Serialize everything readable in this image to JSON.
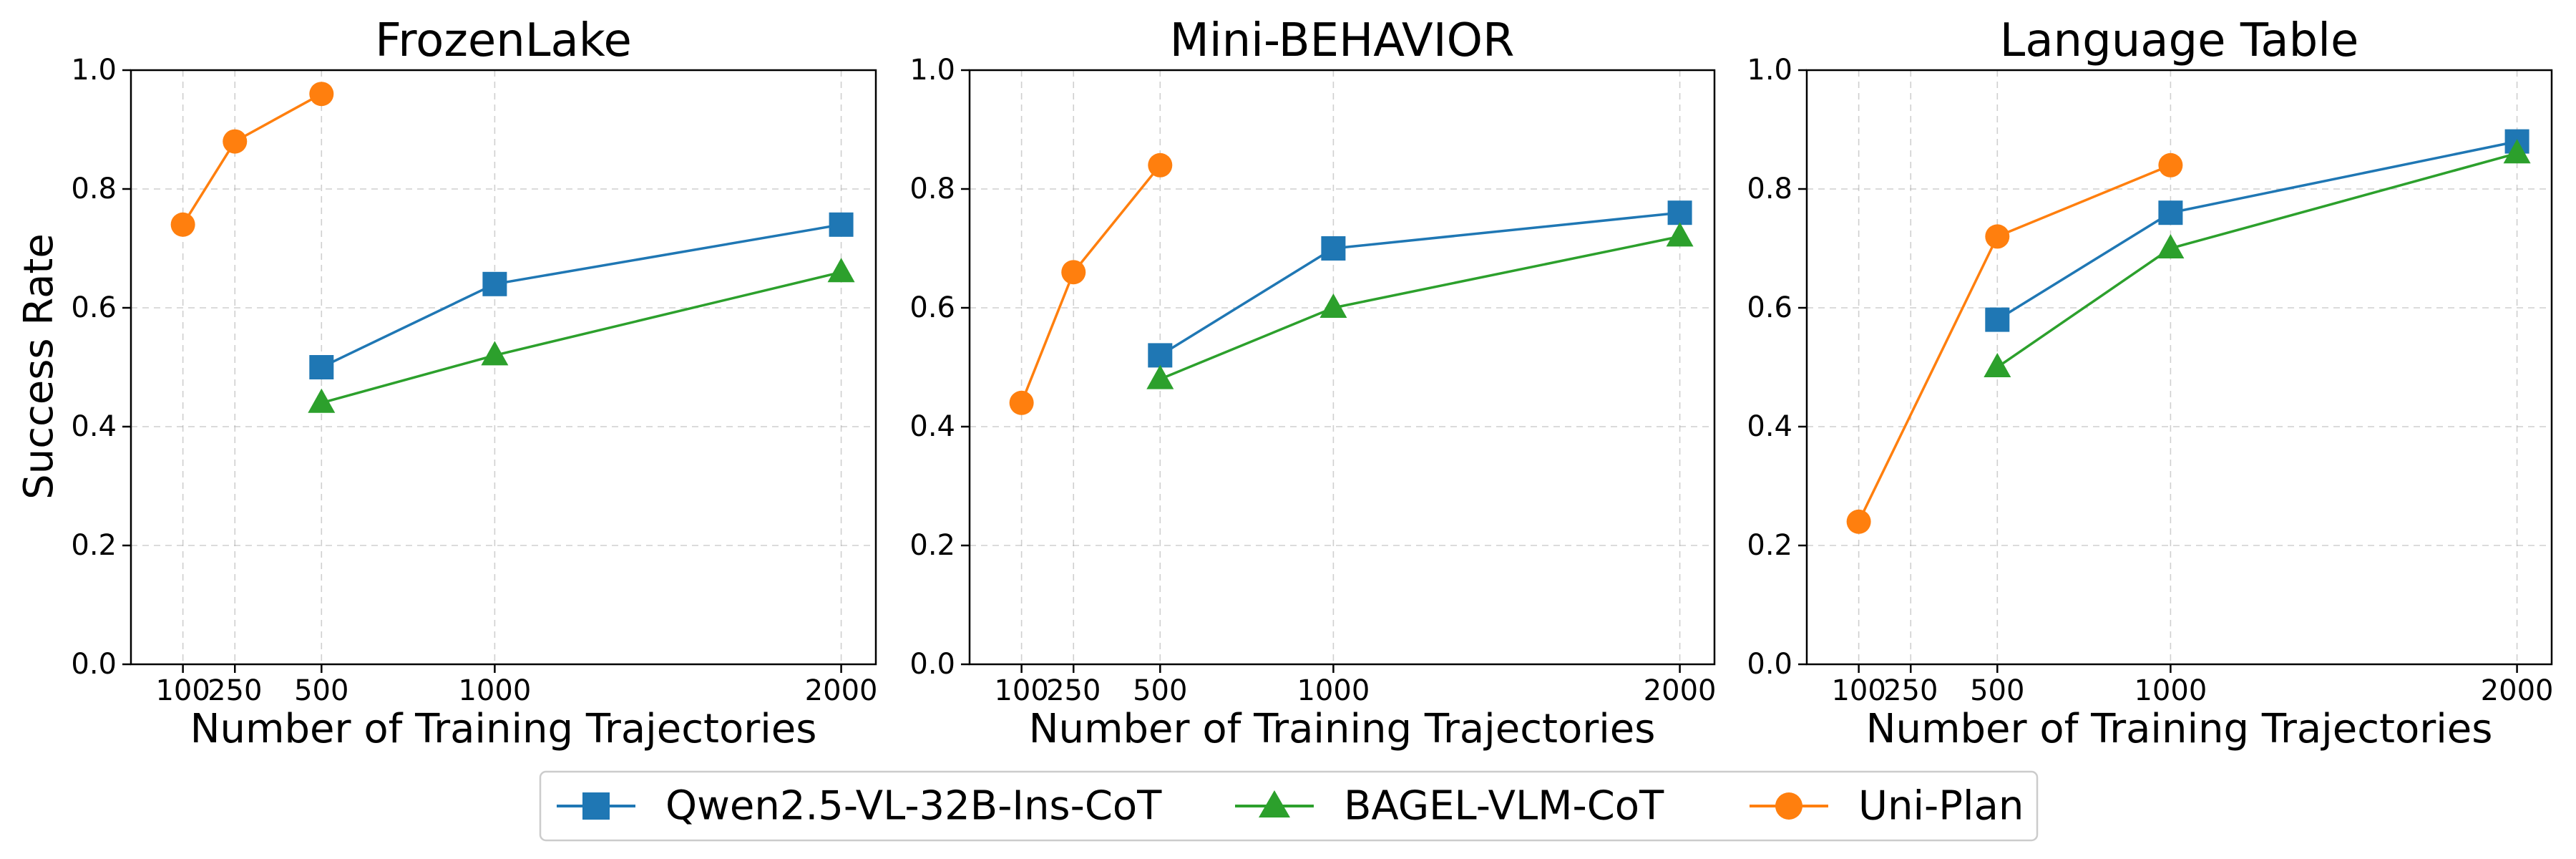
{
  "figure": {
    "y_axis_label": "Success Rate",
    "series_meta": [
      {
        "name": "Qwen2.5-VL-32B-Ins-CoT",
        "color": "#1f77b4",
        "marker": "square"
      },
      {
        "name": "BAGEL-VLM-CoT",
        "color": "#2ca02c",
        "marker": "triangle"
      },
      {
        "name": "Uni-Plan",
        "color": "#ff7f0e",
        "marker": "circle"
      }
    ]
  },
  "chart_data": [
    {
      "type": "line",
      "title": "FrozenLake",
      "xlabel": "Number of Training Trajectories",
      "ylabel": "Success Rate",
      "xlim": [
        -50,
        2100
      ],
      "ylim": [
        0.0,
        1.0
      ],
      "xticks": [
        100,
        250,
        500,
        1000,
        2000
      ],
      "xtick_labels": [
        "100",
        "250",
        "500",
        "1000",
        "2000"
      ],
      "yticks": [
        0.0,
        0.2,
        0.4,
        0.6,
        0.8,
        1.0
      ],
      "ytick_labels": [
        "0.0",
        "0.2",
        "0.4",
        "0.6",
        "0.8",
        "1.0"
      ],
      "grid": true,
      "series": [
        {
          "name": "Qwen2.5-VL-32B-Ins-CoT",
          "x": [
            500,
            1000,
            2000
          ],
          "y": [
            0.5,
            0.64,
            0.74
          ]
        },
        {
          "name": "BAGEL-VLM-CoT",
          "x": [
            500,
            1000,
            2000
          ],
          "y": [
            0.44,
            0.52,
            0.66
          ]
        },
        {
          "name": "Uni-Plan",
          "x": [
            100,
            250,
            500
          ],
          "y": [
            0.74,
            0.88,
            0.96
          ]
        }
      ]
    },
    {
      "type": "line",
      "title": "Mini-BEHAVIOR",
      "xlabel": "Number of Training Trajectories",
      "ylabel": "",
      "xlim": [
        -50,
        2100
      ],
      "ylim": [
        0.0,
        1.0
      ],
      "xticks": [
        100,
        250,
        500,
        1000,
        2000
      ],
      "xtick_labels": [
        "100",
        "250",
        "500",
        "1000",
        "2000"
      ],
      "yticks": [
        0.0,
        0.2,
        0.4,
        0.6,
        0.8,
        1.0
      ],
      "ytick_labels": [
        "0.0",
        "0.2",
        "0.4",
        "0.6",
        "0.8",
        "1.0"
      ],
      "grid": true,
      "series": [
        {
          "name": "Qwen2.5-VL-32B-Ins-CoT",
          "x": [
            500,
            1000,
            2000
          ],
          "y": [
            0.52,
            0.7,
            0.76
          ]
        },
        {
          "name": "BAGEL-VLM-CoT",
          "x": [
            500,
            1000,
            2000
          ],
          "y": [
            0.48,
            0.6,
            0.72
          ]
        },
        {
          "name": "Uni-Plan",
          "x": [
            100,
            250,
            500
          ],
          "y": [
            0.44,
            0.66,
            0.84
          ]
        }
      ]
    },
    {
      "type": "line",
      "title": "Language Table",
      "xlabel": "Number of Training Trajectories",
      "ylabel": "",
      "xlim": [
        -50,
        2100
      ],
      "ylim": [
        0.0,
        1.0
      ],
      "xticks": [
        100,
        250,
        500,
        1000,
        2000
      ],
      "xtick_labels": [
        "100",
        "250",
        "500",
        "1000",
        "2000"
      ],
      "yticks": [
        0.0,
        0.2,
        0.4,
        0.6,
        0.8,
        1.0
      ],
      "ytick_labels": [
        "0.0",
        "0.2",
        "0.4",
        "0.6",
        "0.8",
        "1.0"
      ],
      "grid": true,
      "series": [
        {
          "name": "Qwen2.5-VL-32B-Ins-CoT",
          "x": [
            500,
            1000,
            2000
          ],
          "y": [
            0.58,
            0.76,
            0.88
          ]
        },
        {
          "name": "BAGEL-VLM-CoT",
          "x": [
            500,
            1000,
            2000
          ],
          "y": [
            0.5,
            0.7,
            0.86
          ]
        },
        {
          "name": "Uni-Plan",
          "x": [
            100,
            500,
            1000
          ],
          "y": [
            0.24,
            0.72,
            0.84
          ]
        }
      ]
    }
  ],
  "legend": {
    "position": "bottom-center",
    "items": [
      {
        "label": "Qwen2.5-VL-32B-Ins-CoT"
      },
      {
        "label": "BAGEL-VLM-CoT"
      },
      {
        "label": "Uni-Plan"
      }
    ]
  }
}
